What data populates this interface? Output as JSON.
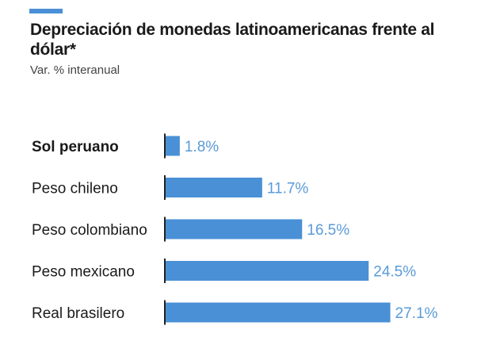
{
  "header": {
    "accent_color": "#4a90d6"
  },
  "chart_data": {
    "type": "bar",
    "orientation": "horizontal",
    "title": "Depreciación de monedas latinoamericanas frente al dólar*",
    "subtitle": "Var. % interanual",
    "categories": [
      "Sol peruano",
      "Peso chileno",
      "Peso colombiano",
      "Peso mexicano",
      "Real brasilero"
    ],
    "values": [
      1.8,
      11.7,
      16.5,
      24.5,
      27.1
    ],
    "value_labels": [
      "1.8%",
      "11.7%",
      "16.5%",
      "24.5%",
      "27.1%"
    ],
    "highlighted_category": "Sol peruano",
    "bar_color": "#4a90d6",
    "value_label_color": "#5a9bd8",
    "axis_color": "#222222",
    "xlim": [
      0,
      28
    ],
    "grid": false,
    "legend": "none"
  }
}
